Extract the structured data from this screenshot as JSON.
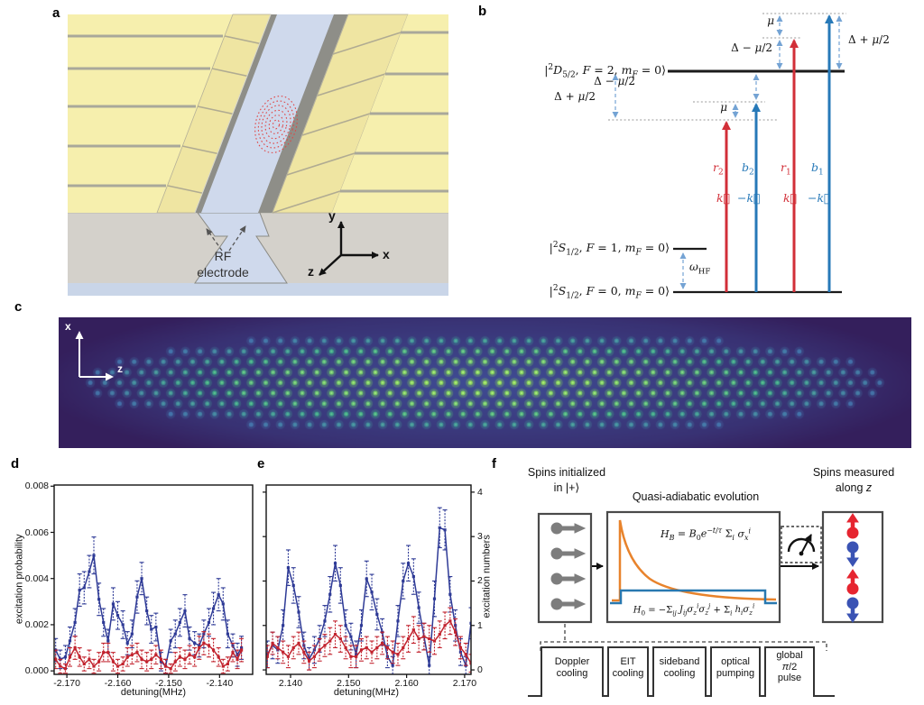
{
  "figure": {
    "panel_labels": {
      "a": "a",
      "b": "b",
      "c": "c",
      "d": "d",
      "e": "e",
      "f": "f"
    }
  },
  "panel_a": {
    "rf_label_line1": "RF",
    "rf_label_line2": "electrode",
    "axes": {
      "x": "x",
      "y": "y",
      "z": "z"
    }
  },
  "panel_b": {
    "levels": {
      "d52": "|<sup>2</sup><i>D</i><sub>5/2</sub>, <i>F</i> = 2, <i>m<sub>F</sub></i> = 0⟩",
      "s12_f1": "|<sup>2</sup><i>S</i><sub>1/2</sub>, <i>F</i> = 1, <i>m<sub>F</sub></i> = 0⟩",
      "s12_f0": "|<sup>2</sup><i>S</i><sub>1/2</sub>, <i>F</i> = 0, <i>m<sub>F</sub></i> = 0⟩"
    },
    "omega_hf": "<i>ω</i><sub>HF</sub>",
    "beam_labels": {
      "r2": "<i>r</i><sub>2</sub>",
      "b2": "<i>b</i><sub>2</sub>",
      "r1": "<i>r</i><sub>1</sub>",
      "b1": "<i>b</i><sub>1</sub>"
    },
    "k_labels": {
      "k_r2": "<i>k&#8407;</i>",
      "mk_b2": "−<i>k&#8407;</i>",
      "k_r1": "<i>k&#8407;</i>",
      "mk_b1": "−<i>k&#8407;</i>"
    },
    "detunings": {
      "mu_top": "<i>μ</i>",
      "delta_minus_top": "Δ − <i>μ</i>/2",
      "delta_plus_right": "Δ + <i>μ</i>/2",
      "delta_minus_bottom": "Δ − <i>μ</i>/2",
      "delta_plus_left": "Δ + <i>μ</i>/2",
      "mu_bottom": "<i>μ</i>"
    },
    "colors": {
      "red_beam": "#d22f38",
      "blue_beam": "#2779b8",
      "measure": "#74a3d4"
    }
  },
  "panel_c": {
    "axis_x": "x",
    "axis_z": "z",
    "description": "Fluorescence image of an elliptical 2D crystal of trapped ions",
    "colors": {
      "background": "#341f5c",
      "glow": "#41549e",
      "dot_center": "#8fdc55",
      "dot_mid": "#3fc08a",
      "dot_edge": "#4a90c8"
    },
    "lattice": {
      "dz": 16.2,
      "dx": 11.6,
      "ellipse_a": 445,
      "ellipse_b": 58
    }
  },
  "chart_data": [
    {
      "id": "d",
      "type": "line",
      "title": "",
      "xlabel": "detuning(MHz)",
      "ylabel": "excitation probability",
      "ylabel_side": "left",
      "grid": false,
      "legend": "none",
      "xlim": [
        -2.1725,
        -2.1335
      ],
      "ylim": [
        -0.00015,
        0.00805
      ],
      "xticks": [
        {
          "v": -2.17,
          "label": "-2.170"
        },
        {
          "v": -2.16,
          "label": "-2.160"
        },
        {
          "v": -2.15,
          "label": "-2.150"
        },
        {
          "v": -2.14,
          "label": "-2.140"
        }
      ],
      "yticks": [
        {
          "v": 0.0,
          "label": "0.000"
        },
        {
          "v": 0.002,
          "label": "0.002"
        },
        {
          "v": 0.004,
          "label": "0.004"
        },
        {
          "v": 0.006,
          "label": "0.006"
        },
        {
          "v": 0.008,
          "label": "0.008"
        }
      ],
      "series": [
        {
          "name": "blue",
          "color": "#2e3a96",
          "points": [
            [
              -2.1722,
              0.0009,
              0.0005
            ],
            [
              -2.1713,
              0.0005,
              0.0004
            ],
            [
              -2.1703,
              0.0006,
              0.0005
            ],
            [
              -2.1694,
              0.0013,
              0.0006
            ],
            [
              -2.1684,
              0.0021,
              0.0006
            ],
            [
              -2.1675,
              0.0035,
              0.0007
            ],
            [
              -2.1666,
              0.0036,
              0.0007
            ],
            [
              -2.1656,
              0.0043,
              0.0007
            ],
            [
              -2.1647,
              0.005,
              0.0008
            ],
            [
              -2.1637,
              0.0031,
              0.0007
            ],
            [
              -2.1628,
              0.0021,
              0.0006
            ],
            [
              -2.1619,
              0.0013,
              0.0005
            ],
            [
              -2.1609,
              0.0029,
              0.0007
            ],
            [
              -2.16,
              0.0024,
              0.0006
            ],
            [
              -2.159,
              0.002,
              0.0006
            ],
            [
              -2.1581,
              0.0012,
              0.0005
            ],
            [
              -2.1572,
              0.0016,
              0.0006
            ],
            [
              -2.1562,
              0.0032,
              0.0007
            ],
            [
              -2.1553,
              0.004,
              0.0007
            ],
            [
              -2.1543,
              0.0026,
              0.0006
            ],
            [
              -2.1534,
              0.0018,
              0.0006
            ],
            [
              -2.1525,
              0.0019,
              0.0006
            ],
            [
              -2.1515,
              0.0004,
              0.0004
            ],
            [
              -2.1506,
              0.0002,
              0.0003
            ],
            [
              -2.1496,
              0.0013,
              0.0005
            ],
            [
              -2.1487,
              0.0016,
              0.0006
            ],
            [
              -2.1478,
              0.0021,
              0.0006
            ],
            [
              -2.1468,
              0.0026,
              0.0007
            ],
            [
              -2.1459,
              0.0014,
              0.0005
            ],
            [
              -2.1449,
              0.0012,
              0.0005
            ],
            [
              -2.144,
              0.0011,
              0.0005
            ],
            [
              -2.1431,
              0.0016,
              0.0006
            ],
            [
              -2.1421,
              0.0021,
              0.0006
            ],
            [
              -2.1412,
              0.0027,
              0.0007
            ],
            [
              -2.1402,
              0.0033,
              0.0007
            ],
            [
              -2.1393,
              0.0029,
              0.0007
            ],
            [
              -2.1384,
              0.0016,
              0.0006
            ],
            [
              -2.1374,
              0.0011,
              0.0005
            ],
            [
              -2.1365,
              0.0007,
              0.0005
            ],
            [
              -2.1357,
              0.001,
              0.0005
            ]
          ]
        },
        {
          "name": "red",
          "color": "#c2232e",
          "points": [
            [
              -2.1722,
              0.0005,
              0.0004
            ],
            [
              -2.1713,
              0.0002,
              0.0003
            ],
            [
              -2.1703,
              0.0001,
              0.0002
            ],
            [
              -2.1694,
              0.0006,
              0.0004
            ],
            [
              -2.1684,
              0.001,
              0.0005
            ],
            [
              -2.1675,
              0.0006,
              0.0004
            ],
            [
              -2.1666,
              0.0003,
              0.0003
            ],
            [
              -2.1656,
              0.0005,
              0.0004
            ],
            [
              -2.1647,
              0.0002,
              0.0003
            ],
            [
              -2.1637,
              0.0004,
              0.0004
            ],
            [
              -2.1628,
              0.0008,
              0.0004
            ],
            [
              -2.1619,
              0.0008,
              0.0004
            ],
            [
              -2.1609,
              0.0004,
              0.0004
            ],
            [
              -2.16,
              0.0002,
              0.0003
            ],
            [
              -2.159,
              0.0003,
              0.0003
            ],
            [
              -2.1581,
              0.0006,
              0.0004
            ],
            [
              -2.1572,
              0.0007,
              0.0004
            ],
            [
              -2.1562,
              0.0008,
              0.0004
            ],
            [
              -2.1553,
              0.0005,
              0.0004
            ],
            [
              -2.1543,
              0.0004,
              0.0004
            ],
            [
              -2.1534,
              0.0005,
              0.0004
            ],
            [
              -2.1525,
              0.0007,
              0.0004
            ],
            [
              -2.1515,
              0.0005,
              0.0004
            ],
            [
              -2.1506,
              0.0002,
              0.0003
            ],
            [
              -2.1496,
              0.0001,
              0.0002
            ],
            [
              -2.1487,
              0.0004,
              0.0004
            ],
            [
              -2.1478,
              0.0006,
              0.0004
            ],
            [
              -2.1468,
              0.0005,
              0.0004
            ],
            [
              -2.1459,
              0.0007,
              0.0004
            ],
            [
              -2.1449,
              0.0006,
              0.0004
            ],
            [
              -2.144,
              0.001,
              0.0005
            ],
            [
              -2.1431,
              0.0012,
              0.0005
            ],
            [
              -2.1421,
              0.0011,
              0.0005
            ],
            [
              -2.1412,
              0.0009,
              0.0005
            ],
            [
              -2.1402,
              0.0006,
              0.0004
            ],
            [
              -2.1393,
              0.0002,
              0.0003
            ],
            [
              -2.1384,
              0.0003,
              0.0003
            ],
            [
              -2.1374,
              0.0008,
              0.0004
            ],
            [
              -2.1365,
              0.0005,
              0.0004
            ],
            [
              -2.1357,
              0.0009,
              0.0005
            ]
          ]
        }
      ]
    },
    {
      "id": "e",
      "type": "line",
      "title": "",
      "xlabel": "detuning(MHz)",
      "ylabel": "excitation numbers",
      "ylabel_side": "right",
      "grid": false,
      "legend": "none",
      "xlim": [
        2.1358,
        2.1711
      ],
      "ylim": [
        -0.1,
        4.16
      ],
      "xticks": [
        {
          "v": 2.14,
          "label": "2.140"
        },
        {
          "v": 2.15,
          "label": "2.150"
        },
        {
          "v": 2.16,
          "label": "2.160"
        },
        {
          "v": 2.17,
          "label": "2.170"
        }
      ],
      "yticks": [
        {
          "v": 0,
          "label": "0"
        },
        {
          "v": 1,
          "label": "1"
        },
        {
          "v": 2,
          "label": "2"
        },
        {
          "v": 3,
          "label": "3"
        },
        {
          "v": 4,
          "label": "4"
        }
      ],
      "series": [
        {
          "name": "blue",
          "color": "#2e3a96",
          "points": [
            [
              2.136,
              0.35,
              0.3
            ],
            [
              2.1369,
              0.55,
              0.3
            ],
            [
              2.1378,
              0.45,
              0.3
            ],
            [
              2.1387,
              1.0,
              0.35
            ],
            [
              2.1396,
              2.3,
              0.4
            ],
            [
              2.1405,
              1.9,
              0.4
            ],
            [
              2.1414,
              1.3,
              0.35
            ],
            [
              2.1423,
              0.55,
              0.3
            ],
            [
              2.1432,
              0.25,
              0.25
            ],
            [
              2.1441,
              0.45,
              0.3
            ],
            [
              2.145,
              0.7,
              0.3
            ],
            [
              2.1459,
              1.1,
              0.35
            ],
            [
              2.1468,
              1.7,
              0.4
            ],
            [
              2.1477,
              2.4,
              0.4
            ],
            [
              2.1486,
              1.9,
              0.4
            ],
            [
              2.1495,
              1.0,
              0.35
            ],
            [
              2.1504,
              0.75,
              0.3
            ],
            [
              2.1513,
              0.35,
              0.3
            ],
            [
              2.1522,
              1.0,
              0.35
            ],
            [
              2.1531,
              2.05,
              0.4
            ],
            [
              2.154,
              1.75,
              0.4
            ],
            [
              2.1549,
              1.25,
              0.35
            ],
            [
              2.1558,
              0.85,
              0.3
            ],
            [
              2.1567,
              0.3,
              0.25
            ],
            [
              2.1576,
              0.1,
              0.2
            ],
            [
              2.1585,
              1.1,
              0.35
            ],
            [
              2.1594,
              2.0,
              0.4
            ],
            [
              2.1603,
              2.4,
              0.4
            ],
            [
              2.1612,
              2.1,
              0.4
            ],
            [
              2.1621,
              1.4,
              0.35
            ],
            [
              2.163,
              0.75,
              0.3
            ],
            [
              2.1639,
              0.1,
              0.2
            ],
            [
              2.1648,
              1.6,
              0.4
            ],
            [
              2.1657,
              3.2,
              0.45
            ],
            [
              2.1666,
              3.15,
              0.45
            ],
            [
              2.1675,
              1.7,
              0.4
            ],
            [
              2.1684,
              1.0,
              0.35
            ],
            [
              2.1693,
              0.4,
              0.3
            ],
            [
              2.1702,
              0.1,
              0.2
            ],
            [
              2.1711,
              1.05,
              0.35
            ]
          ]
        },
        {
          "name": "red",
          "color": "#c2232e",
          "points": [
            [
              2.136,
              0.3,
              0.25
            ],
            [
              2.1369,
              0.6,
              0.25
            ],
            [
              2.1378,
              0.5,
              0.25
            ],
            [
              2.1387,
              0.4,
              0.25
            ],
            [
              2.1396,
              0.3,
              0.25
            ],
            [
              2.1405,
              0.5,
              0.25
            ],
            [
              2.1414,
              0.6,
              0.25
            ],
            [
              2.1423,
              0.4,
              0.25
            ],
            [
              2.1432,
              0.2,
              0.2
            ],
            [
              2.1441,
              0.3,
              0.25
            ],
            [
              2.145,
              0.45,
              0.25
            ],
            [
              2.1459,
              0.55,
              0.25
            ],
            [
              2.1468,
              0.65,
              0.3
            ],
            [
              2.1477,
              0.8,
              0.3
            ],
            [
              2.1486,
              0.7,
              0.3
            ],
            [
              2.1495,
              0.5,
              0.25
            ],
            [
              2.1504,
              0.3,
              0.25
            ],
            [
              2.1513,
              0.3,
              0.25
            ],
            [
              2.1522,
              0.45,
              0.25
            ],
            [
              2.1531,
              0.5,
              0.25
            ],
            [
              2.154,
              0.4,
              0.25
            ],
            [
              2.1549,
              0.5,
              0.25
            ],
            [
              2.1558,
              0.6,
              0.25
            ],
            [
              2.1567,
              0.5,
              0.25
            ],
            [
              2.1576,
              0.4,
              0.25
            ],
            [
              2.1585,
              0.35,
              0.25
            ],
            [
              2.1594,
              0.5,
              0.25
            ],
            [
              2.1603,
              0.7,
              0.3
            ],
            [
              2.1612,
              0.9,
              0.3
            ],
            [
              2.1621,
              0.7,
              0.3
            ],
            [
              2.163,
              0.75,
              0.3
            ],
            [
              2.1639,
              0.7,
              0.3
            ],
            [
              2.1648,
              0.65,
              0.3
            ],
            [
              2.1657,
              0.8,
              0.3
            ],
            [
              2.1666,
              1.0,
              0.3
            ],
            [
              2.1675,
              1.1,
              0.3
            ],
            [
              2.1684,
              0.85,
              0.3
            ],
            [
              2.1693,
              0.5,
              0.25
            ],
            [
              2.1702,
              0.35,
              0.25
            ],
            [
              2.1711,
              0.15,
              0.2
            ]
          ]
        }
      ]
    }
  ],
  "panel_f": {
    "top_labels": {
      "init1": "Spins initialized",
      "init2": "in |+⟩",
      "evolution": "Quasi-adiabatic evolution",
      "measure1": "Spins measured",
      "measure2": "along <i>z</i>"
    },
    "equations": {
      "hb": "<i>H<sub>B</sub></i> = <i>B</i><sub>0</sub><i>e</i><sup>−<i>t</i>/<i>τ</i></sup> Σ<sub><i>i</i></sub> <i>σ<sub>x</sub><sup>i</sup></i>",
      "h0": "<i>H</i><sub>0</sub> = −Σ<sub><i>ij</i></sub> <i>J<sub>ij</sub></i><i>σ<sub>z</sub><sup>i</sup></i><i>σ<sub>z</sub><sup>j</sup></i> + Σ<sub><i>i</i></sub> <i>h<sub>i</sub></i><i>σ<sub>z</sub><sup>i</sup></i>"
    },
    "pulses": [
      "Doppler<br>cooling",
      "EIT<br>cooling",
      "sideband<br>cooling",
      "optical<br>pumping",
      "global<br><i>π</i>/2<br>pulse"
    ],
    "colors": {
      "ramp": "#e8832c",
      "h0_step": "#2878b0",
      "spin_up": "#e62530",
      "spin_down": "#3a53b4",
      "spin_init": "#7d7d7d"
    }
  }
}
